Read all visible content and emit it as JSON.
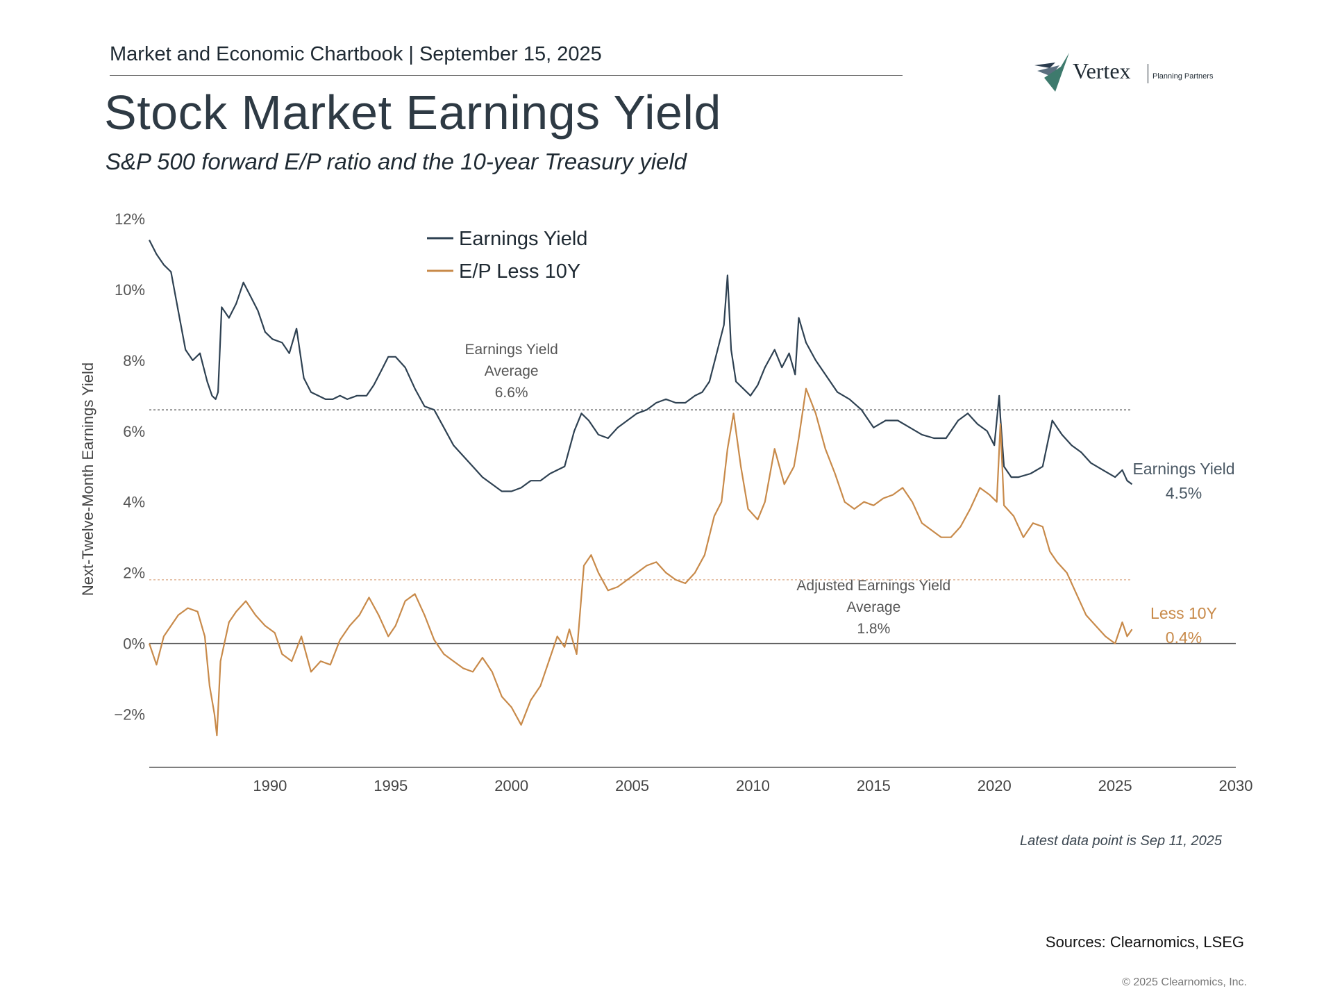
{
  "header": {
    "chartbook": "Market and Economic Chartbook | September 15, 2025",
    "title": "Stock Market Earnings Yield",
    "subtitle": "S&P 500 forward E/P ratio and the 10-year Treasury yield"
  },
  "logo": {
    "word": "Vertex",
    "sub": "Planning Partners",
    "icon": "vertex-checkmark-icon",
    "colors": [
      "#2a3b4d",
      "#5b6f7f",
      "#3e7a6d"
    ]
  },
  "footer": {
    "note": "Latest data point is Sep 11, 2025",
    "sources": "Sources: Clearnomics, LSEG",
    "copyright": "© 2025 Clearnomics, Inc."
  },
  "chart_data": {
    "type": "line",
    "ylabel": "Next-Twelve-Month Earnings Yield",
    "xlim": [
      1985,
      2030
    ],
    "ylim": [
      -3.5,
      12
    ],
    "x_ticks": [
      1990,
      1995,
      2000,
      2005,
      2010,
      2015,
      2020,
      2025,
      2030
    ],
    "y_ticks": [
      -2,
      0,
      2,
      4,
      6,
      8,
      10,
      12
    ],
    "y_tick_labels": [
      "−2%",
      "0%",
      "2%",
      "4%",
      "6%",
      "8%",
      "10%",
      "12%"
    ],
    "grid": false,
    "legend": "top-left",
    "series": [
      {
        "name": "Earnings Yield",
        "color": "#2e4152",
        "x": [
          1985.0,
          1985.3,
          1985.6,
          1985.9,
          1986.2,
          1986.5,
          1986.8,
          1987.1,
          1987.4,
          1987.6,
          1987.75,
          1987.85,
          1988.0,
          1988.3,
          1988.6,
          1988.9,
          1989.2,
          1989.5,
          1989.8,
          1990.1,
          1990.5,
          1990.8,
          1991.1,
          1991.4,
          1991.7,
          1992.0,
          1992.3,
          1992.6,
          1992.9,
          1993.2,
          1993.6,
          1994.0,
          1994.3,
          1994.6,
          1994.9,
          1995.2,
          1995.6,
          1996.0,
          1996.4,
          1996.8,
          1997.2,
          1997.6,
          1998.0,
          1998.4,
          1998.8,
          1999.2,
          1999.6,
          2000.0,
          2000.4,
          2000.8,
          2001.2,
          2001.6,
          2001.9,
          2002.2,
          2002.6,
          2002.9,
          2003.2,
          2003.6,
          2004.0,
          2004.4,
          2004.8,
          2005.2,
          2005.6,
          2006.0,
          2006.4,
          2006.8,
          2007.2,
          2007.6,
          2007.9,
          2008.2,
          2008.5,
          2008.8,
          2008.95,
          2009.1,
          2009.3,
          2009.6,
          2009.9,
          2010.2,
          2010.5,
          2010.9,
          2011.2,
          2011.5,
          2011.75,
          2011.9,
          2012.2,
          2012.6,
          2013.0,
          2013.5,
          2014.0,
          2014.5,
          2015.0,
          2015.5,
          2016.0,
          2016.5,
          2017.0,
          2017.5,
          2018.0,
          2018.5,
          2018.9,
          2019.3,
          2019.7,
          2020.0,
          2020.2,
          2020.25,
          2020.4,
          2020.7,
          2021.0,
          2021.5,
          2022.0,
          2022.4,
          2022.8,
          2023.2,
          2023.6,
          2024.0,
          2024.5,
          2025.0,
          2025.3,
          2025.5,
          2025.7
        ],
        "y": [
          11.4,
          11.0,
          10.7,
          10.5,
          9.4,
          8.3,
          8.0,
          8.2,
          7.4,
          7.0,
          6.9,
          7.1,
          9.5,
          9.2,
          9.6,
          10.2,
          9.8,
          9.4,
          8.8,
          8.6,
          8.5,
          8.2,
          8.9,
          7.5,
          7.1,
          7.0,
          6.9,
          6.9,
          7.0,
          6.9,
          7.0,
          7.0,
          7.3,
          7.7,
          8.1,
          8.1,
          7.8,
          7.2,
          6.7,
          6.6,
          6.1,
          5.6,
          5.3,
          5.0,
          4.7,
          4.5,
          4.3,
          4.3,
          4.4,
          4.6,
          4.6,
          4.8,
          4.9,
          5.0,
          6.0,
          6.5,
          6.3,
          5.9,
          5.8,
          6.1,
          6.3,
          6.5,
          6.6,
          6.8,
          6.9,
          6.8,
          6.8,
          7.0,
          7.1,
          7.4,
          8.2,
          9.0,
          10.4,
          8.3,
          7.4,
          7.2,
          7.0,
          7.3,
          7.8,
          8.3,
          7.8,
          8.2,
          7.6,
          9.2,
          8.5,
          8.0,
          7.6,
          7.1,
          6.9,
          6.6,
          6.1,
          6.3,
          6.3,
          6.1,
          5.9,
          5.8,
          5.8,
          6.3,
          6.5,
          6.2,
          6.0,
          5.6,
          7.0,
          6.4,
          5.0,
          4.7,
          4.7,
          4.8,
          5.0,
          6.3,
          5.9,
          5.6,
          5.4,
          5.1,
          4.9,
          4.7,
          4.9,
          4.6,
          4.5
        ]
      },
      {
        "name": "E/P Less 10Y",
        "color": "#c88a4a",
        "x": [
          1985.0,
          1985.3,
          1985.6,
          1985.9,
          1986.2,
          1986.6,
          1987.0,
          1987.3,
          1987.5,
          1987.7,
          1987.8,
          1987.95,
          1988.3,
          1988.6,
          1989.0,
          1989.4,
          1989.8,
          1990.2,
          1990.5,
          1990.9,
          1991.3,
          1991.7,
          1992.1,
          1992.5,
          1992.9,
          1993.3,
          1993.7,
          1994.1,
          1994.5,
          1994.9,
          1995.2,
          1995.6,
          1996.0,
          1996.4,
          1996.8,
          1997.2,
          1997.6,
          1998.0,
          1998.4,
          1998.8,
          1999.2,
          1999.6,
          2000.0,
          2000.4,
          2000.8,
          2001.2,
          2001.6,
          2001.9,
          2002.2,
          2002.4,
          2002.7,
          2003.0,
          2003.3,
          2003.6,
          2004.0,
          2004.4,
          2004.8,
          2005.2,
          2005.6,
          2006.0,
          2006.4,
          2006.8,
          2007.2,
          2007.6,
          2008.0,
          2008.4,
          2008.7,
          2008.95,
          2009.2,
          2009.5,
          2009.8,
          2010.2,
          2010.5,
          2010.9,
          2011.3,
          2011.7,
          2011.9,
          2012.2,
          2012.6,
          2013.0,
          2013.4,
          2013.8,
          2014.2,
          2014.6,
          2015.0,
          2015.4,
          2015.8,
          2016.2,
          2016.6,
          2017.0,
          2017.4,
          2017.8,
          2018.2,
          2018.6,
          2019.0,
          2019.4,
          2019.8,
          2020.1,
          2020.25,
          2020.4,
          2020.8,
          2021.2,
          2021.6,
          2022.0,
          2022.3,
          2022.6,
          2023.0,
          2023.4,
          2023.8,
          2024.2,
          2024.6,
          2025.0,
          2025.3,
          2025.5,
          2025.7
        ],
        "y": [
          0.0,
          -0.6,
          0.2,
          0.5,
          0.8,
          1.0,
          0.9,
          0.2,
          -1.2,
          -2.0,
          -2.6,
          -0.5,
          0.6,
          0.9,
          1.2,
          0.8,
          0.5,
          0.3,
          -0.3,
          -0.5,
          0.2,
          -0.8,
          -0.5,
          -0.6,
          0.1,
          0.5,
          0.8,
          1.3,
          0.8,
          0.2,
          0.5,
          1.2,
          1.4,
          0.8,
          0.1,
          -0.3,
          -0.5,
          -0.7,
          -0.8,
          -0.4,
          -0.8,
          -1.5,
          -1.8,
          -2.3,
          -1.6,
          -1.2,
          -0.4,
          0.2,
          -0.1,
          0.4,
          -0.3,
          2.2,
          2.5,
          2.0,
          1.5,
          1.6,
          1.8,
          2.0,
          2.2,
          2.3,
          2.0,
          1.8,
          1.7,
          2.0,
          2.5,
          3.6,
          4.0,
          5.5,
          6.5,
          5.0,
          3.8,
          3.5,
          4.0,
          5.5,
          4.5,
          5.0,
          5.8,
          7.2,
          6.5,
          5.5,
          4.8,
          4.0,
          3.8,
          4.0,
          3.9,
          4.1,
          4.2,
          4.4,
          4.0,
          3.4,
          3.2,
          3.0,
          3.0,
          3.3,
          3.8,
          4.4,
          4.2,
          4.0,
          6.2,
          3.9,
          3.6,
          3.0,
          3.4,
          3.3,
          2.6,
          2.3,
          2.0,
          1.4,
          0.8,
          0.5,
          0.2,
          0.0,
          0.6,
          0.2,
          0.4
        ]
      }
    ],
    "reference_lines": [
      {
        "name": "Earnings Yield Average",
        "value": 6.6,
        "label": [
          "Earnings Yield",
          "Average",
          "6.6%"
        ],
        "color": "#777777",
        "label_at_x": 2000
      },
      {
        "name": "Adjusted Earnings Yield Average",
        "value": 1.8,
        "label": [
          "Adjusted Earnings Yield",
          "Average",
          "1.8%"
        ],
        "color": "#e0b89a",
        "label_at_x": 2015
      }
    ],
    "end_labels": [
      {
        "text": [
          "Earnings Yield",
          "4.5%"
        ],
        "color": "#4a5864",
        "y": 4.5
      },
      {
        "text": [
          "Less 10Y",
          "0.4%"
        ],
        "color": "#c88a4a",
        "y": 0.4
      }
    ]
  }
}
